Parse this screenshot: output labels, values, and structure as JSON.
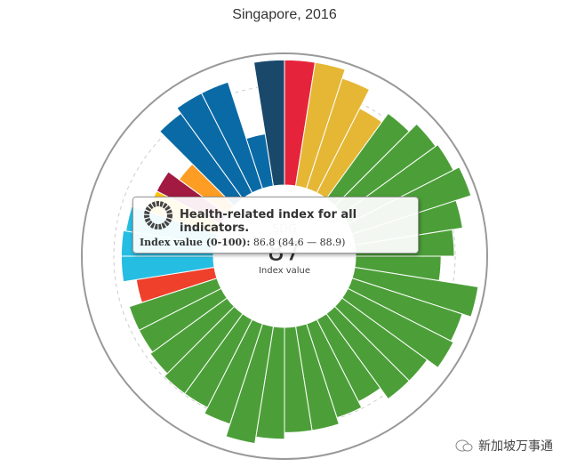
{
  "chart_data": {
    "type": "radial_bar",
    "title": "Singapore, 2016",
    "values": [
      95,
      95,
      88,
      72,
      80,
      88,
      90,
      95,
      83,
      75,
      65,
      95,
      88,
      90,
      80,
      80,
      70,
      75,
      80,
      80,
      85,
      90,
      80,
      75,
      75,
      72,
      70,
      70,
      60,
      70,
      70,
      68,
      55,
      55,
      45,
      80,
      85,
      85,
      40,
      95
    ],
    "colors": [
      "#e5243b",
      "#e5b735",
      "#e5b735",
      "#e5b735",
      "#4c9f38",
      "#4c9f38",
      "#4c9f38",
      "#4c9f38",
      "#4c9f38",
      "#4c9f38",
      "#4c9f38",
      "#4c9f38",
      "#4c9f38",
      "#4c9f38",
      "#4c9f38",
      "#4c9f38",
      "#4c9f38",
      "#4c9f38",
      "#4c9f38",
      "#4c9f38",
      "#4c9f38",
      "#4c9f38",
      "#4c9f38",
      "#4c9f38",
      "#4c9f38",
      "#4c9f38",
      "#4c9f38",
      "#4c9f38",
      "#ef402b",
      "#26bde2",
      "#26bde2",
      "#26bde2",
      "#fcc30b",
      "#a21942",
      "#fd9d24",
      "#0a6aa6",
      "#0a6aa6",
      "#0a6aa6",
      "#0a6aa6",
      "#19486a"
    ],
    "rlim": [
      0,
      100
    ],
    "center_label": "SDG",
    "center_value": 87,
    "center_sublabel": "Index value",
    "tooltip": {
      "title": "Health-related index for all indicators.",
      "label": "Index value (0-100):",
      "value_text": "86.8 (84.6 — 88.9)"
    }
  },
  "watermark": "新加坡万事通"
}
